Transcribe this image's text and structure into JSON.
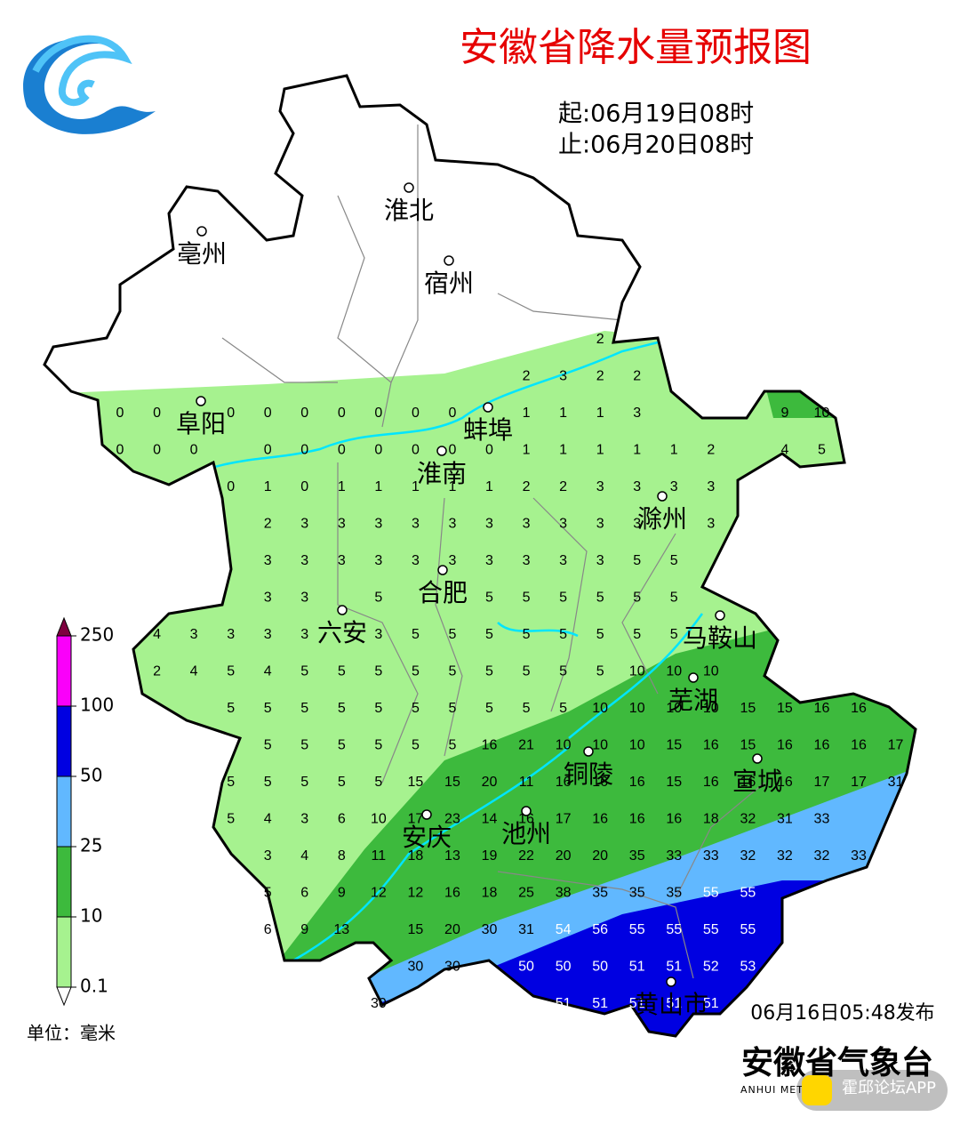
{
  "header": {
    "title": "安徽省降水量预报图",
    "start": "起:06月19日08时",
    "end": "止:06月20日08时"
  },
  "cities": [
    "淮北",
    "宿州",
    "亳州",
    "阜阳",
    "蚌埠",
    "淮南",
    "滁州",
    "合肥",
    "六安",
    "马鞍山",
    "芜湖",
    "铜陵",
    "宣城",
    "安庆",
    "池州",
    "黄山市"
  ],
  "grid": {
    "rows": [
      [
        null,
        null,
        null,
        null,
        null,
        null,
        null,
        null,
        null,
        null,
        null,
        null,
        null,
        2,
        null,
        null,
        null,
        null,
        null,
        null,
        null,
        null
      ],
      [
        null,
        null,
        null,
        null,
        null,
        null,
        null,
        null,
        null,
        null,
        null,
        2,
        3,
        2,
        2,
        null,
        null,
        null,
        null,
        null,
        null,
        null
      ],
      [
        0,
        0,
        null,
        0,
        0,
        0,
        0,
        0,
        0,
        0,
        null,
        1,
        1,
        1,
        3,
        null,
        null,
        null,
        9,
        10,
        null,
        null
      ],
      [
        0,
        0,
        0,
        null,
        0,
        0,
        0,
        0,
        0,
        0,
        0,
        1,
        1,
        1,
        1,
        1,
        2,
        null,
        4,
        5,
        null,
        null
      ],
      [
        null,
        null,
        null,
        0,
        1,
        0,
        1,
        1,
        1,
        1,
        1,
        2,
        2,
        3,
        3,
        3,
        3,
        null,
        null,
        null,
        null,
        null
      ],
      [
        null,
        null,
        null,
        null,
        2,
        3,
        3,
        3,
        3,
        3,
        3,
        3,
        3,
        3,
        3,
        null,
        3,
        null,
        null,
        null,
        null,
        null
      ],
      [
        null,
        null,
        null,
        null,
        3,
        3,
        3,
        3,
        3,
        3,
        3,
        3,
        3,
        3,
        5,
        5,
        null,
        null,
        null,
        null,
        null,
        null
      ],
      [
        null,
        null,
        null,
        null,
        3,
        3,
        null,
        5,
        null,
        null,
        5,
        5,
        5,
        5,
        5,
        5,
        null,
        null,
        null,
        null,
        null,
        null
      ],
      [
        null,
        4,
        3,
        3,
        3,
        3,
        null,
        3,
        5,
        5,
        5,
        5,
        5,
        5,
        5,
        5,
        null,
        null,
        null,
        null,
        null,
        null
      ],
      [
        null,
        2,
        4,
        5,
        4,
        5,
        5,
        5,
        5,
        5,
        5,
        5,
        5,
        5,
        10,
        10,
        10,
        null,
        null,
        null,
        null,
        null
      ],
      [
        null,
        null,
        null,
        5,
        5,
        5,
        5,
        5,
        5,
        5,
        5,
        5,
        5,
        10,
        10,
        10,
        10,
        15,
        15,
        16,
        16,
        null
      ],
      [
        null,
        null,
        null,
        null,
        5,
        5,
        5,
        5,
        5,
        5,
        16,
        21,
        10,
        10,
        10,
        15,
        16,
        15,
        16,
        16,
        16,
        17
      ],
      [
        null,
        null,
        null,
        5,
        5,
        5,
        5,
        5,
        15,
        15,
        20,
        11,
        16,
        16,
        16,
        15,
        16,
        16,
        16,
        17,
        17,
        31
      ],
      [
        null,
        null,
        null,
        5,
        4,
        3,
        6,
        10,
        17,
        23,
        14,
        16,
        17,
        16,
        16,
        16,
        18,
        32,
        31,
        33,
        null,
        null
      ],
      [
        null,
        null,
        null,
        null,
        3,
        4,
        8,
        11,
        18,
        13,
        19,
        22,
        20,
        20,
        35,
        33,
        33,
        32,
        32,
        32,
        33,
        null
      ],
      [
        null,
        null,
        null,
        null,
        5,
        6,
        9,
        12,
        12,
        16,
        18,
        25,
        38,
        35,
        35,
        35,
        55,
        55,
        null,
        null,
        null,
        null
      ],
      [
        null,
        null,
        null,
        null,
        6,
        9,
        13,
        null,
        15,
        20,
        30,
        31,
        54,
        56,
        55,
        55,
        55,
        55,
        null,
        null,
        null,
        null
      ],
      [
        null,
        null,
        null,
        null,
        null,
        null,
        null,
        null,
        30,
        30,
        null,
        50,
        50,
        50,
        51,
        51,
        52,
        53,
        null,
        null,
        null,
        null
      ],
      [
        null,
        null,
        null,
        null,
        null,
        null,
        null,
        30,
        null,
        null,
        null,
        null,
        51,
        51,
        51,
        51,
        51,
        null,
        null,
        null,
        null,
        null
      ]
    ]
  },
  "legend": {
    "unit": "单位：毫米",
    "ticks": [
      0.1,
      10,
      25,
      50,
      100,
      250
    ],
    "colors": [
      "#a6f28f",
      "#3dba3d",
      "#61b8ff",
      "#0000e1",
      "#fa00fa",
      "#7f0040"
    ]
  },
  "footer": {
    "issued": "06月16日05:48发布",
    "agency": "安徽省气象台",
    "agency_en": "ANHUI METE",
    "watermark": "霍邱论坛APP"
  }
}
